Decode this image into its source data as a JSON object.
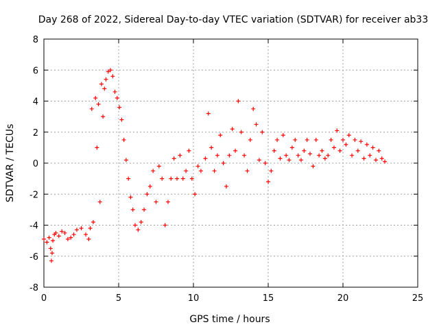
{
  "chart_data": {
    "type": "scatter",
    "title": "Day 268 of 2022, Sidereal Day-to-day VTEC variation (SDTVAR) for receiver ab33",
    "xlabel": "GPS time / hours",
    "ylabel": "SDTVAR / TECUs",
    "xlim": [
      0,
      25
    ],
    "ylim": [
      -8,
      8
    ],
    "xticks": [
      "0",
      "5",
      "10",
      "15",
      "20",
      "25"
    ],
    "yticks": [
      "-8",
      "-6",
      "-4",
      "-2",
      "0",
      "2",
      "4",
      "6",
      "8"
    ],
    "grid": true,
    "marker": "+",
    "color": "#ff0000",
    "series": [
      {
        "name": "ab33",
        "x": [
          0.0,
          0.2,
          0.35,
          0.45,
          0.5,
          0.55,
          0.6,
          0.7,
          0.8,
          1.0,
          1.2,
          1.4,
          1.6,
          1.8,
          2.0,
          2.2,
          2.5,
          2.8,
          3.0,
          3.1,
          3.2,
          3.3,
          3.45,
          3.55,
          3.65,
          3.75,
          3.85,
          3.95,
          4.05,
          4.15,
          4.3,
          4.45,
          4.6,
          4.75,
          4.9,
          5.05,
          5.2,
          5.35,
          5.5,
          5.65,
          5.8,
          5.95,
          6.1,
          6.3,
          6.5,
          6.7,
          6.9,
          7.1,
          7.3,
          7.5,
          7.7,
          7.9,
          8.1,
          8.3,
          8.5,
          8.7,
          8.9,
          9.1,
          9.3,
          9.5,
          9.7,
          9.9,
          10.1,
          10.3,
          10.5,
          10.8,
          11.0,
          11.2,
          11.4,
          11.6,
          11.8,
          12.0,
          12.2,
          12.4,
          12.6,
          12.8,
          13.0,
          13.2,
          13.4,
          13.6,
          13.8,
          14.0,
          14.2,
          14.4,
          14.6,
          14.8,
          15.0,
          15.2,
          15.4,
          15.6,
          15.8,
          16.0,
          16.2,
          16.4,
          16.6,
          16.8,
          17.0,
          17.2,
          17.4,
          17.6,
          17.8,
          18.0,
          18.2,
          18.4,
          18.6,
          18.8,
          19.0,
          19.2,
          19.4,
          19.6,
          19.8,
          20.0,
          20.2,
          20.4,
          20.6,
          20.8,
          21.0,
          21.2,
          21.4,
          21.6,
          21.8,
          22.0,
          22.2,
          22.4,
          22.6,
          22.8
        ],
        "y": [
          -4.9,
          -5.1,
          -4.8,
          -5.5,
          -6.3,
          -5.8,
          -5.0,
          -4.6,
          -4.5,
          -4.7,
          -4.4,
          -4.5,
          -4.9,
          -4.8,
          -4.6,
          -4.3,
          -4.2,
          -4.6,
          -4.9,
          -4.2,
          3.5,
          -3.8,
          4.2,
          1.0,
          3.8,
          -2.5,
          5.1,
          3.0,
          4.8,
          5.4,
          5.9,
          6.0,
          5.6,
          4.6,
          4.2,
          3.6,
          2.8,
          1.5,
          0.2,
          -1.0,
          -2.2,
          -3.0,
          -4.0,
          -4.3,
          -3.8,
          -3.0,
          -2.0,
          -1.5,
          -0.5,
          -2.5,
          -0.2,
          -1.0,
          -4.0,
          -2.5,
          -1.0,
          0.3,
          -1.0,
          0.5,
          -1.0,
          -0.5,
          0.8,
          -1.0,
          -2.0,
          -0.2,
          -0.5,
          0.3,
          3.2,
          1.0,
          -0.5,
          0.5,
          1.8,
          0.0,
          -1.5,
          0.5,
          2.2,
          0.8,
          4.0,
          2.0,
          0.5,
          -0.5,
          1.5,
          3.5,
          2.5,
          0.2,
          2.0,
          0.0,
          -1.2,
          -0.5,
          0.8,
          1.5,
          0.3,
          1.8,
          0.5,
          0.2,
          1.0,
          1.5,
          0.5,
          0.2,
          0.8,
          1.5,
          0.6,
          -0.2,
          1.5,
          0.5,
          0.8,
          0.3,
          0.5,
          1.5,
          1.0,
          2.1,
          0.8,
          1.5,
          1.2,
          1.8,
          0.5,
          1.5,
          0.8,
          1.4,
          0.3,
          1.2,
          0.5,
          1.0,
          0.2,
          0.8,
          0.3,
          0.1
        ]
      }
    ]
  }
}
